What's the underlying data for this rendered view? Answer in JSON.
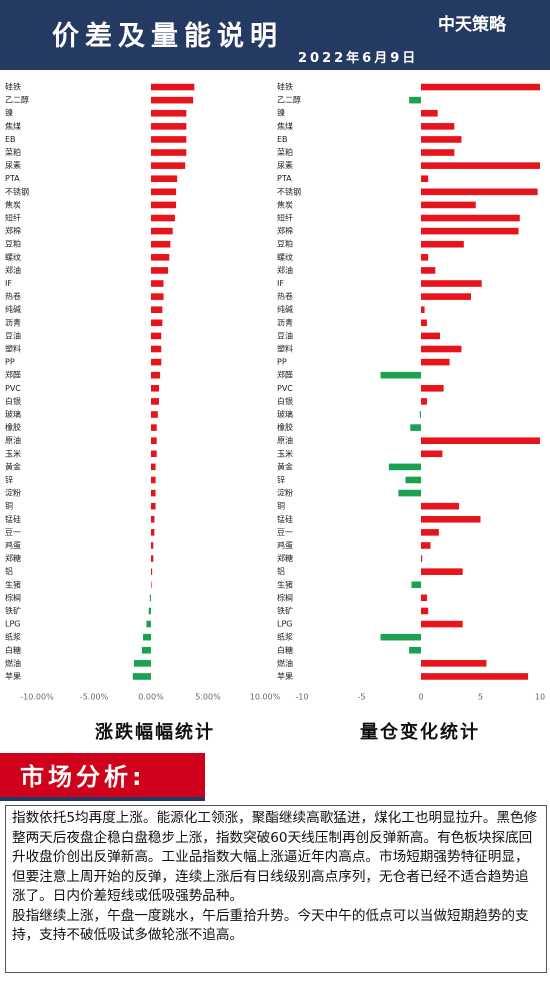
{
  "header": {
    "title": "价差及量能说明",
    "date": "2022年6月9日",
    "logo": "中天策略"
  },
  "chart_data": [
    {
      "type": "bar",
      "orientation": "horizontal",
      "title": "涨跌幅幅统计",
      "categories": [
        "硅铁",
        "乙二醇",
        "镍",
        "焦煤",
        "EB",
        "菜粕",
        "尿素",
        "PTA",
        "不锈钢",
        "焦炭",
        "短纤",
        "郑棉",
        "豆粕",
        "螺纹",
        "郑油",
        "IF",
        "热卷",
        "纯碱",
        "沥青",
        "豆油",
        "塑料",
        "PP",
        "郑醛",
        "PVC",
        "白银",
        "玻璃",
        "橡胶",
        "原油",
        "玉米",
        "黄金",
        "锌",
        "淀粉",
        "铜",
        "锰硅",
        "豆一",
        "鸡蛋",
        "郑糖",
        "铝",
        "生猪",
        "棕榈",
        "铁矿",
        "LPG",
        "纸浆",
        "白糖",
        "燃油",
        "苹果"
      ],
      "values": [
        3.8,
        3.7,
        3.1,
        3.1,
        3.1,
        3.1,
        3.0,
        2.3,
        2.2,
        2.2,
        2.1,
        1.9,
        1.7,
        1.6,
        1.5,
        1.1,
        1.1,
        1.0,
        1.0,
        0.9,
        0.9,
        0.9,
        0.8,
        0.7,
        0.7,
        0.6,
        0.5,
        0.5,
        0.5,
        0.4,
        0.4,
        0.4,
        0.4,
        0.3,
        0.3,
        0.2,
        0.2,
        0.1,
        0.05,
        -0.1,
        -0.2,
        -0.4,
        -0.7,
        -0.8,
        -1.5,
        -1.6
      ],
      "positive_color": "#e8141b",
      "negative_color": "#1aa251",
      "xlim": [
        -10,
        10
      ],
      "xticks": [
        {
          "value": -10,
          "label": "-10.00%"
        },
        {
          "value": -5,
          "label": "-5.00%"
        },
        {
          "value": 0,
          "label": "0.00%"
        },
        {
          "value": 5,
          "label": "5.00%"
        },
        {
          "value": 10,
          "label": "10.00%"
        }
      ]
    },
    {
      "type": "bar",
      "orientation": "horizontal",
      "title": "量仓变化统计",
      "categories": [
        "硅铁",
        "乙二醇",
        "镍",
        "焦煤",
        "EB",
        "菜粕",
        "尿素",
        "PTA",
        "不锈钢",
        "焦炭",
        "短纤",
        "郑棉",
        "豆粕",
        "螺纹",
        "郑油",
        "IF",
        "热卷",
        "纯碱",
        "沥青",
        "豆油",
        "塑料",
        "PP",
        "郑醛",
        "PVC",
        "白银",
        "玻璃",
        "橡胶",
        "原油",
        "玉米",
        "黄金",
        "锌",
        "淀粉",
        "铜",
        "锰硅",
        "豆一",
        "鸡蛋",
        "郑糖",
        "铝",
        "生猪",
        "棕榈",
        "铁矿",
        "LPG",
        "纸浆",
        "白糖",
        "燃油",
        "苹果"
      ],
      "values": [
        10,
        -1,
        1.4,
        2.8,
        3.4,
        2.8,
        10,
        0.6,
        9.8,
        4.6,
        8.3,
        8.2,
        3.6,
        0.6,
        1.2,
        5.1,
        4.2,
        0.3,
        0.5,
        1.6,
        3.4,
        2.4,
        -3.4,
        1.9,
        0.5,
        -0.1,
        -0.9,
        10,
        1.8,
        -2.7,
        -1.3,
        -1.9,
        3.2,
        5.0,
        1.5,
        0.8,
        0.1,
        3.5,
        -0.8,
        0.5,
        0.6,
        3.5,
        -3.4,
        -1.0,
        5.5,
        9.0
      ],
      "positive_color": "#e8141b",
      "negative_color": "#1aa251",
      "xlim": [
        -10,
        10
      ],
      "xticks": [
        -10,
        -5,
        0,
        5,
        10
      ]
    }
  ],
  "analysis": {
    "heading": "市场分析:",
    "paragraphs": [
      "指数依托5均再度上涨。能源化工领涨，聚酯继续高歌猛进，煤化工也明显拉升。黑色修整两天后夜盘企稳白盘稳步上涨，指数突破60天线压制再创反弹新高。有色板块探底回升收盘价创出反弹新高。工业品指数大幅上涨逼近年内高点。市场短期强势特征明显，但要注意上周开始的反弹，连续上涨后有日线级别高点序列，无仓者已经不适合趋势追涨了。日内价差短线或低吸强势品种。",
      "股指继续上涨，午盘一度跳水，午后重拾升势。今天中午的低点可以当做短期趋势的支持，支持不破低吸试多做轮涨不追高。"
    ]
  }
}
